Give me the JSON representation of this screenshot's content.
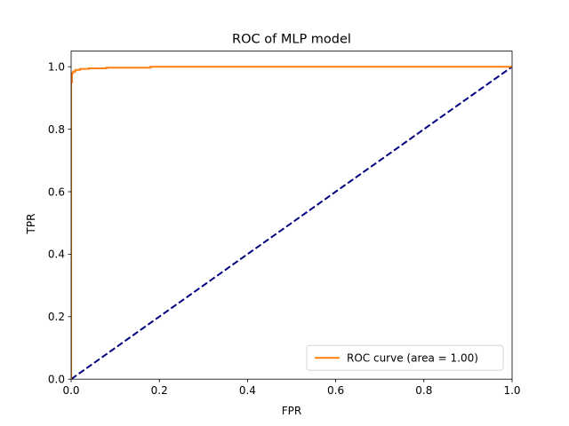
{
  "chart_data": {
    "type": "line",
    "title": "ROC of MLP model",
    "xlabel": "FPR",
    "ylabel": "TPR",
    "xlim": [
      0.0,
      1.0
    ],
    "ylim": [
      0.0,
      1.05
    ],
    "xticks": [
      0.0,
      0.2,
      0.4,
      0.6,
      0.8,
      1.0
    ],
    "xtick_labels": [
      "0.0",
      "0.2",
      "0.4",
      "0.6",
      "0.8",
      "1.0"
    ],
    "yticks": [
      0.0,
      0.2,
      0.4,
      0.6,
      0.8,
      1.0
    ],
    "ytick_labels": [
      "0.0",
      "0.2",
      "0.4",
      "0.6",
      "0.8",
      "1.0"
    ],
    "grid": false,
    "legend_position": "lower right",
    "series": [
      {
        "name": "ROC curve (area = 1.00)",
        "color": "#ff7f0e",
        "style": "solid",
        "x": [
          0.0,
          0.0,
          0.002,
          0.002,
          0.005,
          0.005,
          0.01,
          0.01,
          0.02,
          0.02,
          0.04,
          0.04,
          0.08,
          0.08,
          0.18,
          0.18,
          1.0
        ],
        "y": [
          0.0,
          0.95,
          0.95,
          0.98,
          0.98,
          0.985,
          0.985,
          0.99,
          0.99,
          0.993,
          0.993,
          0.995,
          0.995,
          0.997,
          0.997,
          1.0,
          1.0
        ]
      },
      {
        "color": "#000080",
        "style": "dashed",
        "x": [
          0.0,
          1.0
        ],
        "y": [
          0.0,
          1.0
        ]
      }
    ]
  }
}
